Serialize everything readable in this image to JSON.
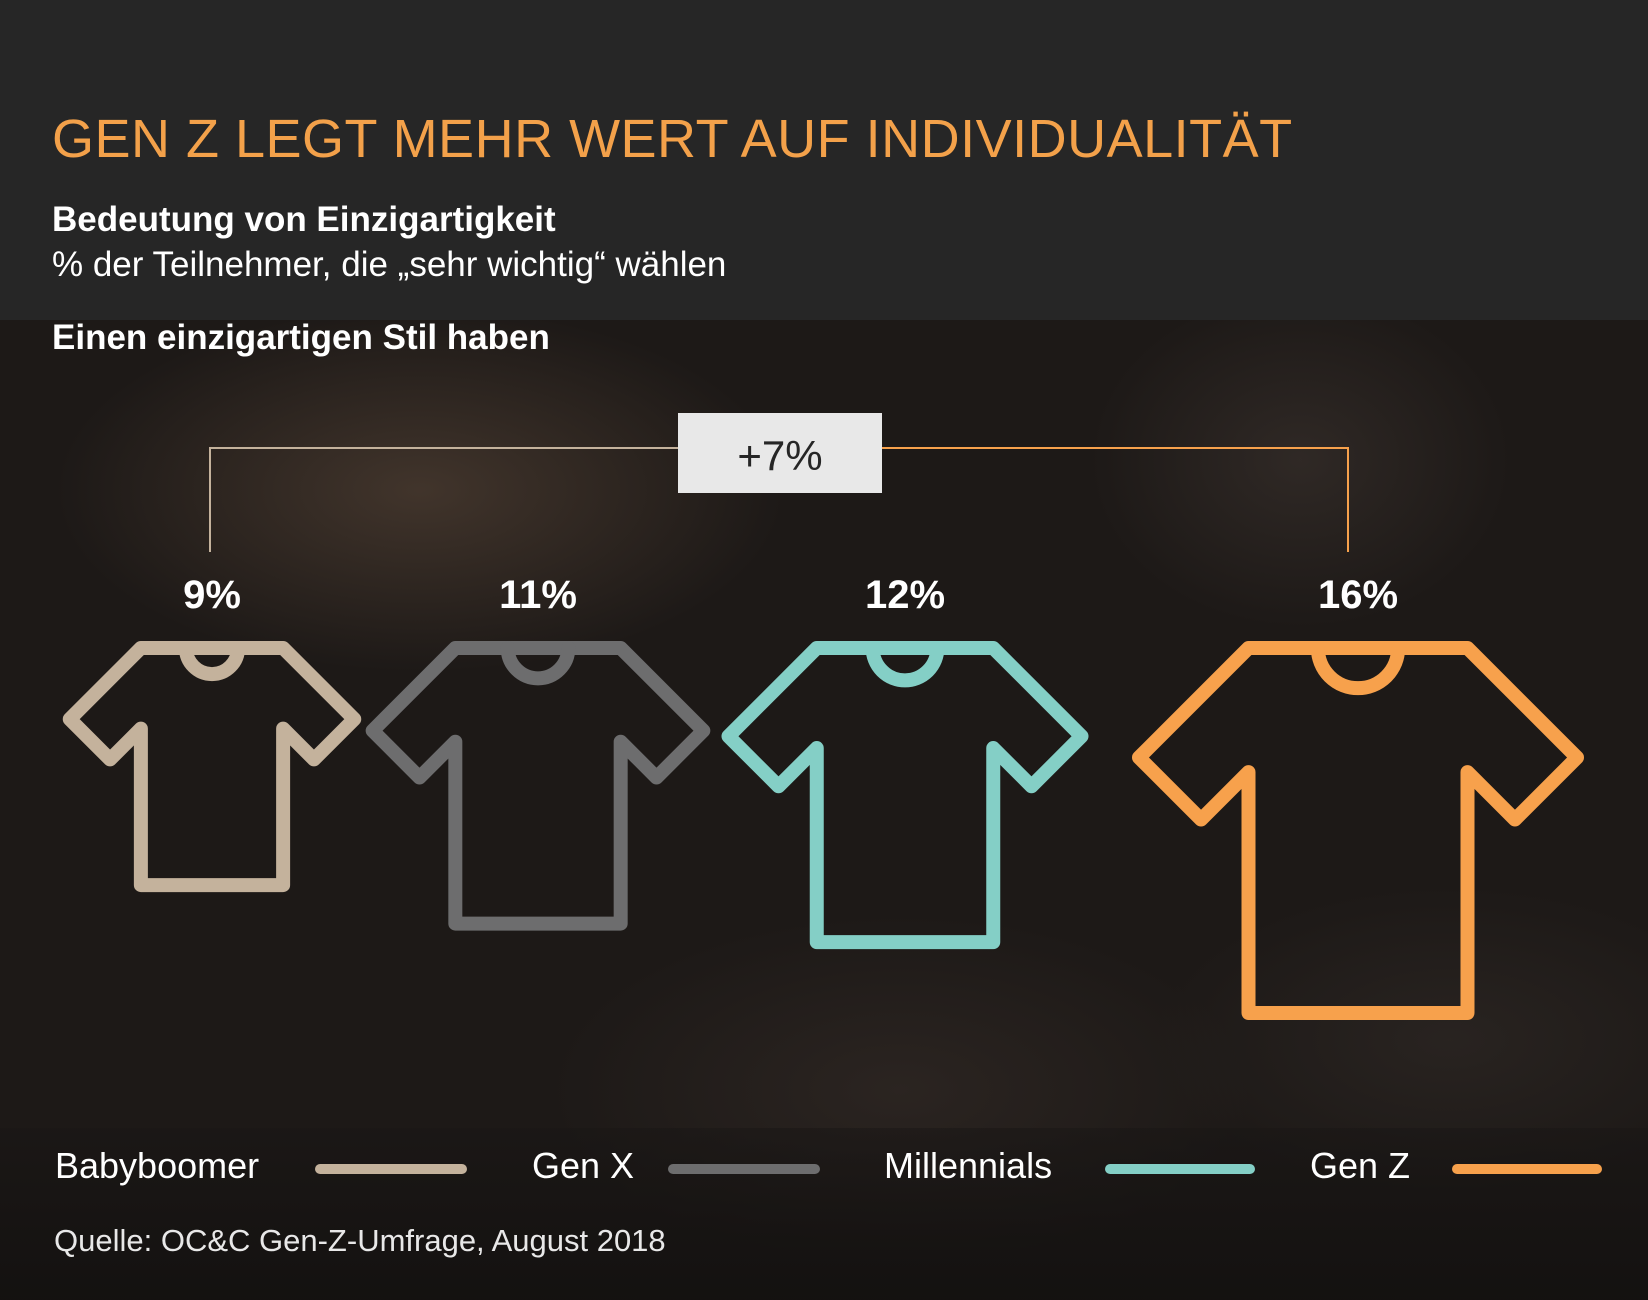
{
  "header": {
    "title": "GEN Z LEGT MEHR WERT AUF INDIVIDUALITÄT",
    "subtitle": "Bedeutung von Einzigartigkeit",
    "subtitle2": "% der Teilnehmer, die „sehr wichtig“ wählen"
  },
  "chart_heading": "Einen einzigartigen Stil haben",
  "chart_data": {
    "type": "bar",
    "title": "Einen einzigartigen Stil haben",
    "categories": [
      "Babyboomer",
      "Gen X",
      "Millennials",
      "Gen Z"
    ],
    "values": [
      9,
      11,
      12,
      16
    ],
    "value_labels": [
      "9%",
      "11%",
      "12%",
      "16%"
    ],
    "colors": [
      "#c4b29c",
      "#6d6d6e",
      "#84cfc6",
      "#f7a14c"
    ],
    "mark": "t-shirt icon sized by value",
    "annotation": "+7%",
    "legend_position": "bottom"
  },
  "legend": [
    {
      "label": "Babyboomer",
      "color": "#c4b29c"
    },
    {
      "label": "Gen X",
      "color": "#6d6d6e"
    },
    {
      "label": "Millennials",
      "color": "#84cfc6"
    },
    {
      "label": "Gen Z",
      "color": "#f7a14c"
    }
  ],
  "source": "Quelle: OC&C Gen-Z-Umfrage, August 2018",
  "colors": {
    "background": "#262626",
    "accent": "#f3a14a",
    "bracket_left": "#c4b29c",
    "bracket_right": "#f7a14c",
    "annotation_box": "#e8e8e8"
  }
}
